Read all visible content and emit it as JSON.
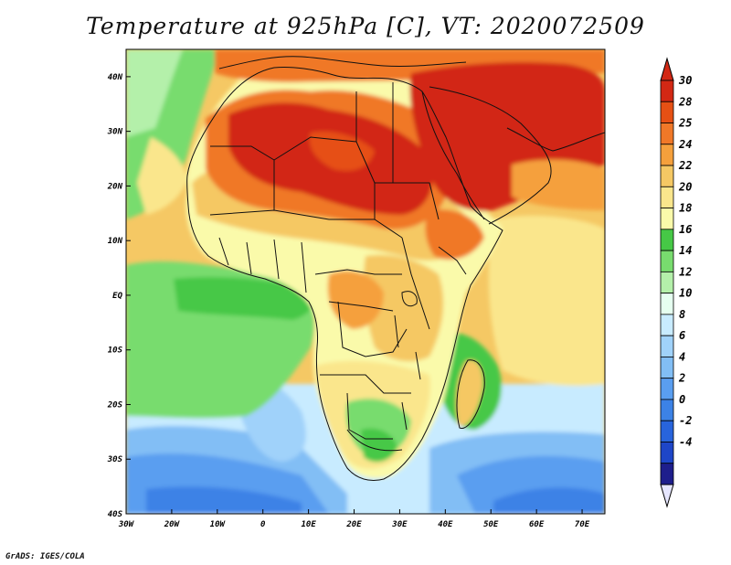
{
  "title": "Temperature at 925hPa [C], VT: 2020072509",
  "credit": "GrADS: IGES/COLA",
  "map": {
    "lon_range": [
      -30,
      75
    ],
    "lat_range": [
      -40,
      45
    ],
    "lon_ticks": [
      {
        "value": -30,
        "label": "30W"
      },
      {
        "value": -20,
        "label": "20W"
      },
      {
        "value": -10,
        "label": "10W"
      },
      {
        "value": 0,
        "label": "0"
      },
      {
        "value": 10,
        "label": "10E"
      },
      {
        "value": 20,
        "label": "20E"
      },
      {
        "value": 30,
        "label": "30E"
      },
      {
        "value": 40,
        "label": "40E"
      },
      {
        "value": 50,
        "label": "50E"
      },
      {
        "value": 60,
        "label": "60E"
      },
      {
        "value": 70,
        "label": "70E"
      }
    ],
    "lat_ticks": [
      {
        "value": 40,
        "label": "40N"
      },
      {
        "value": 30,
        "label": "30N"
      },
      {
        "value": 20,
        "label": "20N"
      },
      {
        "value": 10,
        "label": "10N"
      },
      {
        "value": 0,
        "label": "EQ"
      },
      {
        "value": -10,
        "label": "10S"
      },
      {
        "value": -20,
        "label": "20S"
      },
      {
        "value": -30,
        "label": "30S"
      },
      {
        "value": -40,
        "label": "40S"
      }
    ]
  },
  "colorbar": {
    "levels": [
      "-4",
      "-2",
      "0",
      "2",
      "4",
      "6",
      "8",
      "10",
      "12",
      "14",
      "16",
      "18",
      "20",
      "22",
      "24",
      "25",
      "28",
      "30"
    ],
    "colors": [
      "#1e1e8c",
      "#1e46c8",
      "#2864dc",
      "#3c82e6",
      "#5a9ef0",
      "#82bef5",
      "#a0d2fa",
      "#c8ebff",
      "#e6fff0",
      "#b4f0aa",
      "#78dc6e",
      "#46c846",
      "#fafaaa",
      "#fae68c",
      "#f5c864",
      "#f5a03c",
      "#f07828",
      "#e65014",
      "#d22814"
    ],
    "below_color": "#e6e6ff",
    "above_color": "#d22814"
  }
}
